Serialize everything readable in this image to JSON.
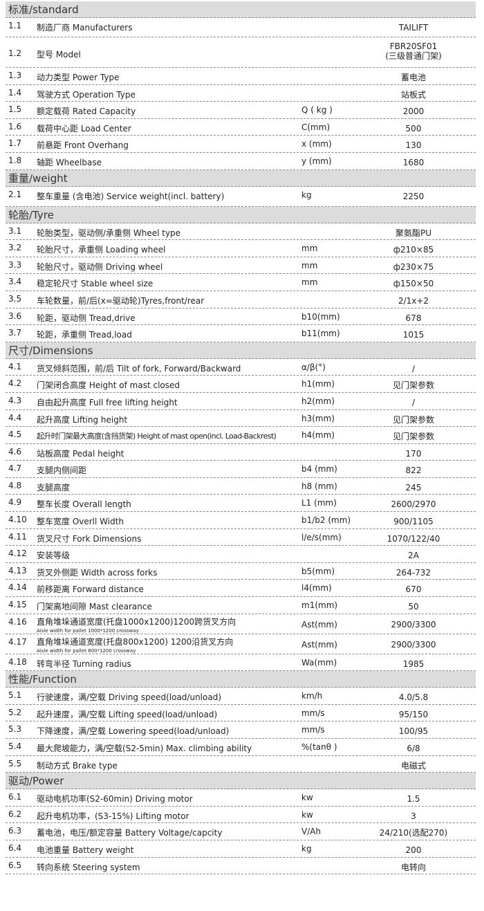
{
  "sections": [
    {
      "title": "标准/standard",
      "rows": [
        {
          "num": "1.1",
          "name": "制造厂商 Manufacturers",
          "unit": "",
          "value": "TAILIFT",
          "cls": "r11"
        },
        {
          "num": "1.2",
          "name": "型号 Model",
          "unit": "",
          "value": "FBR20SF01\n(三级普通门架)",
          "cls": "tall"
        },
        {
          "num": "1.3",
          "name": "动力类型 Power Type",
          "unit": "",
          "value": "蓄电池"
        },
        {
          "num": "1.4",
          "name": "驾驶方式 Operation Type",
          "unit": "",
          "value": "站板式"
        },
        {
          "num": "1.5",
          "name": "额定载荷 Rated Capacity",
          "unit": "Q ( kg )",
          "value": "2000"
        },
        {
          "num": "1.6",
          "name": "载荷中心距 Load Center",
          "unit": "C(mm)",
          "value": "500"
        },
        {
          "num": "1.7",
          "name": "前悬距 Front Overhang",
          "unit": "x (mm)",
          "value": "130"
        },
        {
          "num": "1.8",
          "name": "轴距 Wheelbase",
          "unit": "y (mm)",
          "value": "1680"
        }
      ]
    },
    {
      "title": "重量/weight",
      "rows": [
        {
          "num": "2.1",
          "name": "整车重量 (含电池) Service weight(incl. battery)",
          "unit": "kg",
          "value": "2250",
          "cls": "r21"
        }
      ]
    },
    {
      "title": "轮胎/Tyre",
      "rows": [
        {
          "num": "3.1",
          "name": "轮胎类型，驱动侧/承重侧  Wheel type",
          "unit": "",
          "value": "聚氨酯PU"
        },
        {
          "num": "3.2",
          "name": "轮胎尺寸，承重侧 Loading wheel",
          "unit": "mm",
          "value": "ф210×85"
        },
        {
          "num": "3.3",
          "name": "轮胎尺寸，驱动侧 Driving wheel",
          "unit": "mm",
          "value": "ф230×75"
        },
        {
          "num": "3.4",
          "name": "稳定轮尺寸 Stable wheel size",
          "unit": "mm",
          "value": "ф150×50"
        },
        {
          "num": "3.5",
          "name": "车轮数量，前/后(x=驱动轮)Tyres,front/rear",
          "unit": "",
          "value": "2/1x+2"
        },
        {
          "num": "3.6",
          "name": "轮距，驱动侧 Tread,drive",
          "unit": "b10(mm)",
          "value": "678"
        },
        {
          "num": "3.7",
          "name": "轮距，承重侧 Tread,load",
          "unit": "b11(mm)",
          "value": "1015"
        }
      ]
    },
    {
      "title": "尺寸/Dimensions",
      "rows": [
        {
          "num": "4.1",
          "name": "货叉倾斜范围，前/后  Tilt of fork, Forward/Backward",
          "unit": "α/β(°)",
          "value": "/"
        },
        {
          "num": "4.2",
          "name": "门架闭合高度 Height of mast closed",
          "unit": "h1(mm)",
          "value": "见门架参数"
        },
        {
          "num": "4.3",
          "name": "自由起升高度 Full free lifting height",
          "unit": "h2(mm)",
          "value": "/"
        },
        {
          "num": "4.4",
          "name": "起升高度 Lifting height",
          "unit": "h3(mm)",
          "value": "见门架参数"
        },
        {
          "num": "4.5",
          "name": "起升时门架最大高度(含挡货架) Height of mast open(incl. Load-Backrest)",
          "unit": "h4(mm)",
          "value": "见门架参数",
          "cond": true
        },
        {
          "num": "4.6",
          "name": "站板高度  Pedal height",
          "unit": "",
          "value": "170"
        },
        {
          "num": "4.7",
          "name": "支腿内侧间距",
          "unit": "b4 (mm)",
          "value": "822"
        },
        {
          "num": "4.8",
          "name": "支腿高度",
          "unit": "h8 (mm)",
          "value": "245"
        },
        {
          "num": "4.9",
          "name": "整车长度  Overall length",
          "unit": "L1 (mm)",
          "value": "2600/2970"
        },
        {
          "num": "4.10",
          "name": "整车宽度  Overll Width",
          "unit": "b1/b2 (mm)",
          "value": "900/1105"
        },
        {
          "num": "4.11",
          "name": "货叉尺寸  Fork Dimensions",
          "unit": "l/e/s(mm)",
          "value": "1070/122/40"
        },
        {
          "num": "4.12",
          "name": "安装等级",
          "unit": "",
          "value": "2A"
        },
        {
          "num": "4.13",
          "name": "货叉外侧距 Width across forks",
          "unit": "b5(mm)",
          "value": "264-732"
        },
        {
          "num": "4.14",
          "name": "前移距离 Forward distance",
          "unit": "l4(mm)",
          "value": "670"
        },
        {
          "num": "4.15",
          "name": "门架离地间隙  Mast clearance",
          "unit": "m1(mm)",
          "value": "50"
        },
        {
          "num": "4.16",
          "name": "直角堆垛通道宽度(托盘1000x1200)1200跨货叉方向",
          "sub": "Aisle width for pallet 1000*1200 crossway",
          "unit": "Ast(mm)",
          "value": "2900/3300",
          "cls": "mid"
        },
        {
          "num": "4.17",
          "name": "直角堆垛通道宽度(托盘800x1200) 1200沿货叉方向",
          "sub": "Aisle width for pallet 800*1200 crossway",
          "unit": "Ast(mm)",
          "value": "2900/3300",
          "cls": "mid"
        },
        {
          "num": "4.18",
          "name": "转弯半径  Turning radius",
          "unit": "Wa(mm)",
          "value": "1985"
        }
      ]
    },
    {
      "title": "性能/Function",
      "rows": [
        {
          "num": "5.1",
          "name": "行驶速度，满/空载 Driving speed(load/unload)",
          "unit": "km/h",
          "value": "4.0/5.8"
        },
        {
          "num": "5.2",
          "name": "起升速度，满/空载 Lifting speed(load/unload)",
          "unit": "mm/s",
          "value": "95/150"
        },
        {
          "num": "5.3",
          "name": "下降速度，满/空载 Lowering speed(load/unload)",
          "unit": "mm/s",
          "value": "100/95"
        },
        {
          "num": "5.4",
          "name": "最大爬坡能力，满/空载(S2-5min) Max. climbing ability",
          "unit": "%(tanθ )",
          "value": "6/8"
        },
        {
          "num": "5.5",
          "name": "制动方式 Brake type",
          "unit": "",
          "value": "电磁式"
        }
      ]
    },
    {
      "title": "驱动/Power",
      "rows": [
        {
          "num": "6.1",
          "name": "驱动电机功率(S2-60min) Driving motor",
          "unit": "kw",
          "value": "1.5"
        },
        {
          "num": "6.2",
          "name": "起升电机功率，(S3-15%) Lifting motor",
          "unit": "kw",
          "value": "3"
        },
        {
          "num": "6.3",
          "name": "蓄电池，电压/额定容量 Battery Voltage/capcity",
          "unit": "V/Ah",
          "value": "24/210(选配270)"
        },
        {
          "num": "6.4",
          "name": "电池重量  Battery weight",
          "unit": "kg",
          "value": "200"
        },
        {
          "num": "6.5",
          "name": "转向系统  Steering system",
          "unit": "",
          "value": "电转向"
        }
      ]
    }
  ]
}
